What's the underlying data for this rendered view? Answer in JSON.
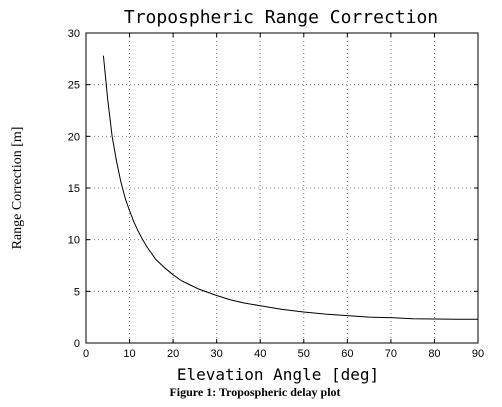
{
  "chart_data": {
    "type": "line",
    "title": "Tropospheric Range Correction",
    "xlabel": "Elevation Angle [deg]",
    "ylabel": "Range Correction [m]",
    "xlim": [
      0,
      90
    ],
    "ylim": [
      0,
      30
    ],
    "xticks": [
      0,
      10,
      20,
      30,
      40,
      50,
      60,
      70,
      80,
      90
    ],
    "yticks": [
      0,
      5,
      10,
      15,
      20,
      25,
      30
    ],
    "grid": true,
    "line_color": "#000000",
    "series": [
      {
        "x": [
          4,
          5,
          6,
          7,
          8,
          9,
          10,
          11,
          12,
          13,
          14,
          15,
          16,
          18,
          20,
          22,
          24,
          26,
          28,
          30,
          33,
          36,
          40,
          45,
          50,
          55,
          60,
          65,
          70,
          75,
          80,
          85,
          90
        ],
        "values": [
          27.8,
          23.5,
          20.0,
          17.6,
          15.6,
          14.0,
          12.8,
          11.7,
          10.8,
          10.0,
          9.3,
          8.7,
          8.1,
          7.3,
          6.6,
          6.0,
          5.6,
          5.2,
          4.9,
          4.6,
          4.2,
          3.9,
          3.6,
          3.25,
          3.0,
          2.8,
          2.65,
          2.5,
          2.45,
          2.35,
          2.32,
          2.3,
          2.3
        ]
      }
    ]
  },
  "caption": "Figure 1: Tropospheric delay plot"
}
